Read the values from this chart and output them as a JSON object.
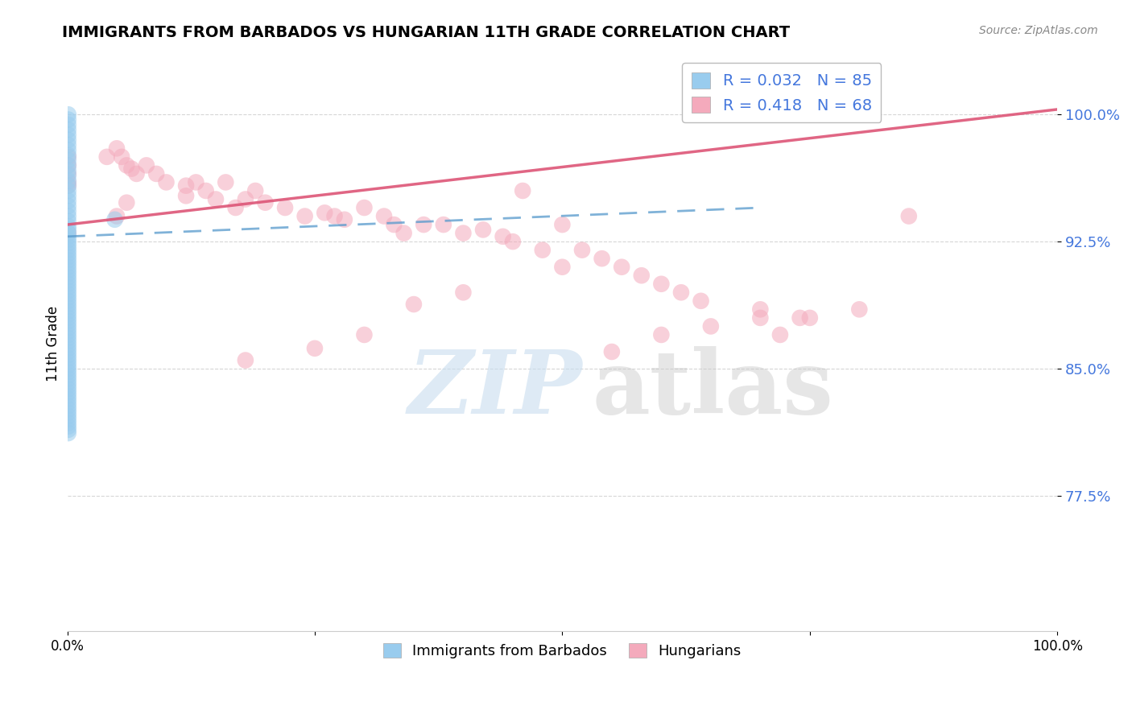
{
  "title": "IMMIGRANTS FROM BARBADOS VS HUNGARIAN 11TH GRADE CORRELATION CHART",
  "source": "Source: ZipAtlas.com",
  "ylabel": "11th Grade",
  "y_tick_labels": [
    "77.5%",
    "85.0%",
    "92.5%",
    "100.0%"
  ],
  "y_tick_values": [
    0.775,
    0.85,
    0.925,
    1.0
  ],
  "x_range": [
    0.0,
    1.0
  ],
  "y_range": [
    0.695,
    1.035
  ],
  "blue_color": "#99CCEE",
  "pink_color": "#F4AABC",
  "blue_line_color": "#5599CC",
  "pink_line_color": "#DD5577",
  "blue_R": 0.032,
  "blue_N": 85,
  "pink_R": 0.418,
  "pink_N": 68,
  "blue_x": [
    0.001,
    0.001,
    0.001,
    0.001,
    0.001,
    0.001,
    0.001,
    0.001,
    0.001,
    0.001,
    0.001,
    0.001,
    0.001,
    0.001,
    0.001,
    0.001,
    0.001,
    0.001,
    0.001,
    0.001,
    0.001,
    0.001,
    0.001,
    0.001,
    0.001,
    0.001,
    0.001,
    0.001,
    0.001,
    0.001,
    0.001,
    0.001,
    0.001,
    0.001,
    0.001,
    0.001,
    0.001,
    0.001,
    0.001,
    0.001,
    0.001,
    0.001,
    0.001,
    0.001,
    0.001,
    0.001,
    0.001,
    0.001,
    0.001,
    0.001,
    0.001,
    0.001,
    0.001,
    0.001,
    0.001,
    0.001,
    0.001,
    0.001,
    0.001,
    0.001,
    0.001,
    0.001,
    0.001,
    0.001,
    0.001,
    0.001,
    0.001,
    0.001,
    0.001,
    0.001,
    0.001,
    0.001,
    0.001,
    0.001,
    0.001,
    0.048,
    0.001,
    0.001,
    0.001,
    0.001,
    0.001,
    0.001,
    0.001,
    0.001,
    0.001
  ],
  "blue_y": [
    1.0,
    0.997,
    0.994,
    0.991,
    0.988,
    0.985,
    0.982,
    0.979,
    0.976,
    0.973,
    0.97,
    0.967,
    0.964,
    0.961,
    0.958,
    0.955,
    0.952,
    0.949,
    0.946,
    0.943,
    0.94,
    0.937,
    0.934,
    0.932,
    0.93,
    0.928,
    0.926,
    0.924,
    0.922,
    0.92,
    0.918,
    0.916,
    0.914,
    0.912,
    0.91,
    0.908,
    0.906,
    0.904,
    0.902,
    0.9,
    0.898,
    0.896,
    0.894,
    0.892,
    0.89,
    0.888,
    0.886,
    0.884,
    0.882,
    0.88,
    0.878,
    0.876,
    0.874,
    0.872,
    0.87,
    0.868,
    0.866,
    0.864,
    0.862,
    0.86,
    0.858,
    0.856,
    0.854,
    0.852,
    0.85,
    0.848,
    0.846,
    0.844,
    0.842,
    0.84,
    0.838,
    0.836,
    0.834,
    0.832,
    0.83,
    0.938,
    0.828,
    0.826,
    0.824,
    0.822,
    0.82,
    0.818,
    0.816,
    0.814,
    0.812
  ],
  "blue_line_x": [
    0.0,
    0.7
  ],
  "blue_line_y": [
    0.928,
    0.945
  ],
  "pink_x": [
    0.001,
    0.001,
    0.001,
    0.001,
    0.001,
    0.04,
    0.05,
    0.055,
    0.06,
    0.065,
    0.07,
    0.08,
    0.09,
    0.1,
    0.12,
    0.13,
    0.14,
    0.15,
    0.16,
    0.17,
    0.18,
    0.19,
    0.2,
    0.22,
    0.24,
    0.26,
    0.27,
    0.28,
    0.3,
    0.32,
    0.33,
    0.34,
    0.36,
    0.38,
    0.4,
    0.42,
    0.44,
    0.45,
    0.46,
    0.48,
    0.5,
    0.52,
    0.54,
    0.56,
    0.58,
    0.6,
    0.62,
    0.64,
    0.7,
    0.72,
    0.74,
    0.8,
    0.85,
    0.001,
    0.05,
    0.06,
    0.12,
    0.18,
    0.25,
    0.3,
    0.35,
    0.4,
    0.5,
    0.55,
    0.6,
    0.65,
    0.7,
    0.75
  ],
  "pink_y": [
    0.975,
    0.97,
    0.965,
    0.96,
    0.958,
    0.975,
    0.98,
    0.975,
    0.97,
    0.968,
    0.965,
    0.97,
    0.965,
    0.96,
    0.958,
    0.96,
    0.955,
    0.95,
    0.96,
    0.945,
    0.95,
    0.955,
    0.948,
    0.945,
    0.94,
    0.942,
    0.94,
    0.938,
    0.945,
    0.94,
    0.935,
    0.93,
    0.935,
    0.935,
    0.93,
    0.932,
    0.928,
    0.925,
    0.955,
    0.92,
    0.935,
    0.92,
    0.915,
    0.91,
    0.905,
    0.9,
    0.895,
    0.89,
    0.885,
    0.87,
    0.88,
    0.885,
    0.94,
    0.93,
    0.94,
    0.948,
    0.952,
    0.855,
    0.862,
    0.87,
    0.888,
    0.895,
    0.91,
    0.86,
    0.87,
    0.875,
    0.88,
    0.88
  ],
  "pink_line_x": [
    0.0,
    1.0
  ],
  "pink_line_y": [
    0.935,
    1.003
  ]
}
